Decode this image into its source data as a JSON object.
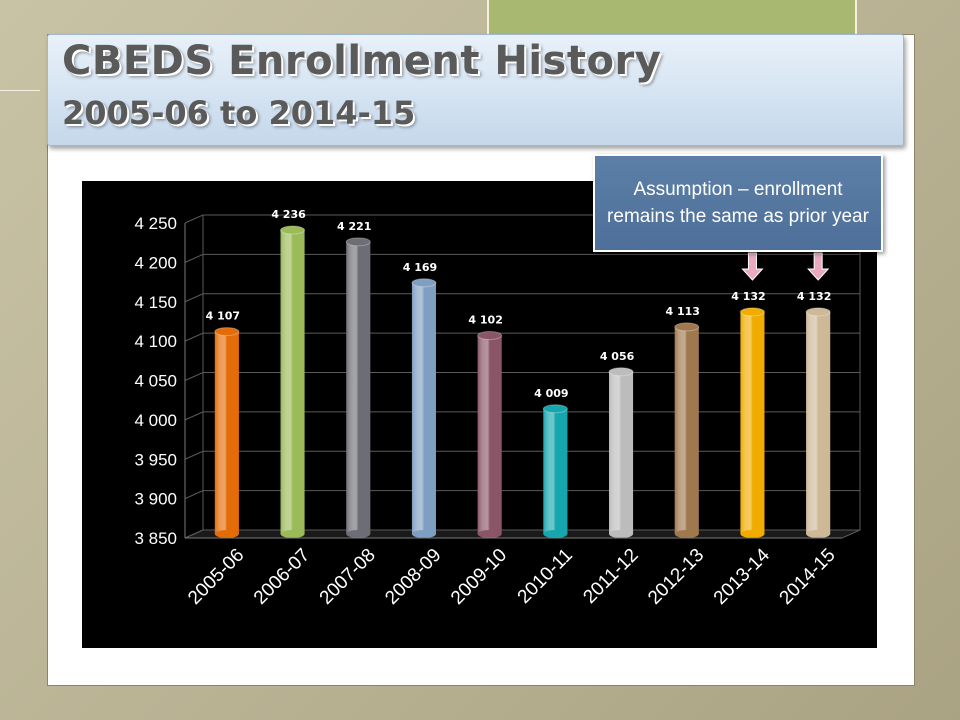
{
  "slide": {
    "title": "CBEDS Enrollment History",
    "subtitle": "2005-06 to 2014-15"
  },
  "annotation": {
    "text": "Assumption – enrollment remains the same as prior year",
    "arrow_color": "#e9a9bf",
    "fill_color": "#4f71a0"
  },
  "chart_data": {
    "type": "bar",
    "title": "",
    "xlabel": "",
    "ylabel": "",
    "ylim": [
      3850,
      4250
    ],
    "yticks": [
      3850,
      3900,
      3950,
      4000,
      4050,
      4100,
      4150,
      4200,
      4250
    ],
    "ytick_labels": [
      "3 850",
      "3 900",
      "3 950",
      "4 000",
      "4 050",
      "4 100",
      "4 150",
      "4 200",
      "4 250"
    ],
    "grid": true,
    "legend": "none",
    "categories": [
      "2005-06",
      "2006-07",
      "2007-08",
      "2008-09",
      "2009-10",
      "2010-11",
      "2011-12",
      "2012-13",
      "2013-14",
      "2014-15"
    ],
    "values": [
      4107,
      4236,
      4221,
      4169,
      4102,
      4009,
      4056,
      4113,
      4132,
      4132
    ],
    "value_labels": [
      "4 107",
      "4 236",
      "4 221",
      "4 169",
      "4 102",
      "4 009",
      "4 056",
      "4 113",
      "4 132",
      "4 132"
    ],
    "colors": [
      "#e36c09",
      "#9bbb59",
      "#6d6e75",
      "#7f9fc2",
      "#8a5566",
      "#16a7ae",
      "#bcbcbc",
      "#a0784e",
      "#f0ad00",
      "#cdb898"
    ],
    "background": "#000000"
  }
}
